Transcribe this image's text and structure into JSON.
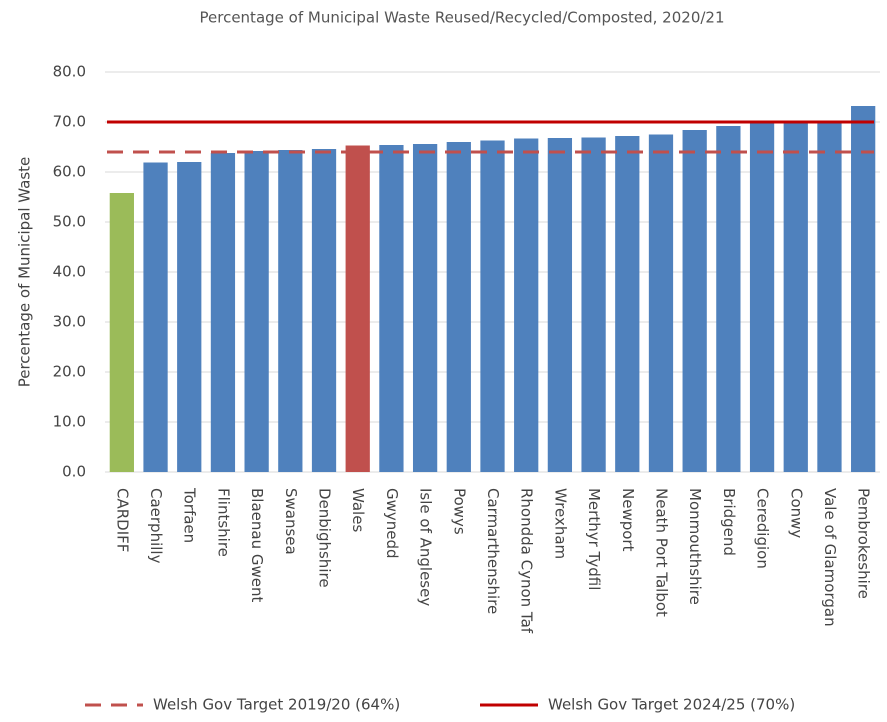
{
  "chart_data": {
    "type": "bar",
    "title": "Percentage of Municipal Waste Reused/Recycled/Composted, 2020/21",
    "y_label": "Percentage of Municipal Waste",
    "categories": [
      "CARDIFF",
      "Caerphilly",
      "Torfaen",
      "Flintshire",
      "Blaenau Gwent",
      "Swansea",
      "Denbighshire",
      "Wales",
      "Gwynedd",
      "Isle of Anglesey",
      "Powys",
      "Carmarthenshire",
      "Rhondda Cynon Taf",
      "Wrexham",
      "Merthyr Tydfil",
      "Newport",
      "Neath Port Talbot",
      "Monmouthshire",
      "Bridgend",
      "Ceredigion",
      "Conwy",
      "Vale of Glamorgan",
      "Pembrokeshire"
    ],
    "values": [
      55.8,
      61.9,
      62.0,
      63.8,
      64.2,
      64.4,
      64.6,
      65.3,
      65.4,
      65.6,
      66.0,
      66.3,
      66.7,
      66.8,
      66.9,
      67.2,
      67.5,
      68.4,
      69.2,
      69.8,
      69.9,
      70.0,
      73.2
    ],
    "colors": [
      "#9bbb59",
      "#4f81bd",
      "#4f81bd",
      "#4f81bd",
      "#4f81bd",
      "#4f81bd",
      "#4f81bd",
      "#c0504d",
      "#4f81bd",
      "#4f81bd",
      "#4f81bd",
      "#4f81bd",
      "#4f81bd",
      "#4f81bd",
      "#4f81bd",
      "#4f81bd",
      "#4f81bd",
      "#4f81bd",
      "#4f81bd",
      "#4f81bd",
      "#4f81bd",
      "#4f81bd",
      "#4f81bd"
    ],
    "reference_lines": [
      {
        "name": "Welsh Gov Target 2019/20 (64%)",
        "value": 64,
        "color": "#c0504d",
        "style": "dashed"
      },
      {
        "name": "Welsh Gov Target 2024/25 (70%)",
        "value": 70,
        "color": "#c00000",
        "style": "solid"
      }
    ],
    "ylim": [
      0,
      80
    ],
    "yticks": [
      {
        "value": 0,
        "label": "0.0"
      },
      {
        "value": 10,
        "label": "10.0"
      },
      {
        "value": 20,
        "label": "20.0"
      },
      {
        "value": 30,
        "label": "30.0"
      },
      {
        "value": 40,
        "label": "40.0"
      },
      {
        "value": 50,
        "label": "50.0"
      },
      {
        "value": 60,
        "label": "60.0"
      },
      {
        "value": 70,
        "label": "70.0"
      },
      {
        "value": 80,
        "label": "80.0"
      }
    ],
    "grid": true
  }
}
